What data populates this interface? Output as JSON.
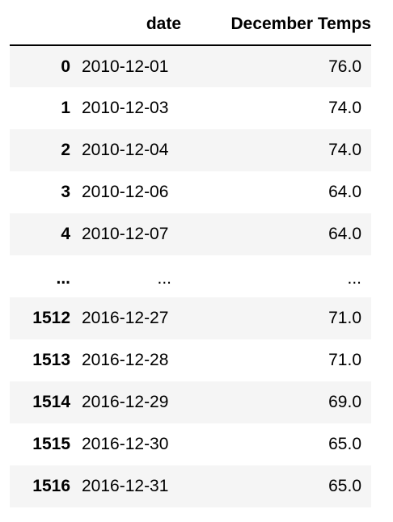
{
  "table": {
    "columns": {
      "index": "",
      "date": "date",
      "temps": "December Temps"
    },
    "rows": [
      {
        "index": "0",
        "date": "2010-12-01",
        "temps": "76.0"
      },
      {
        "index": "1",
        "date": "2010-12-03",
        "temps": "74.0"
      },
      {
        "index": "2",
        "date": "2010-12-04",
        "temps": "74.0"
      },
      {
        "index": "3",
        "date": "2010-12-06",
        "temps": "64.0"
      },
      {
        "index": "4",
        "date": "2010-12-07",
        "temps": "64.0"
      },
      {
        "index": "...",
        "date": "...",
        "temps": "..."
      },
      {
        "index": "1512",
        "date": "2016-12-27",
        "temps": "71.0"
      },
      {
        "index": "1513",
        "date": "2016-12-28",
        "temps": "71.0"
      },
      {
        "index": "1514",
        "date": "2016-12-29",
        "temps": "69.0"
      },
      {
        "index": "1515",
        "date": "2016-12-30",
        "temps": "65.0"
      },
      {
        "index": "1516",
        "date": "2016-12-31",
        "temps": "65.0"
      }
    ]
  }
}
